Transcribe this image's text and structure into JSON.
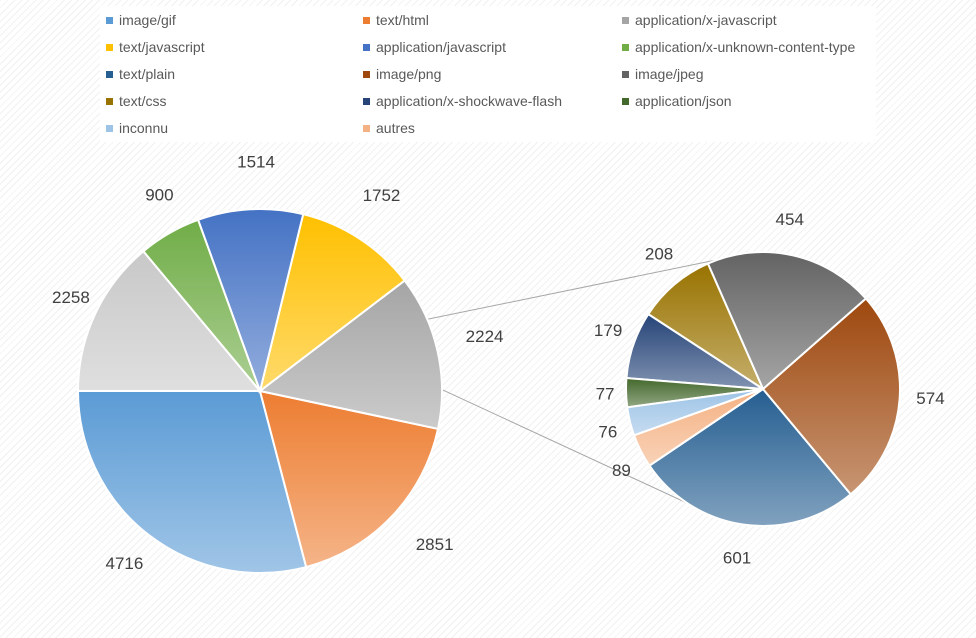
{
  "chart_data": {
    "type": "pie",
    "subtype": "pie-of-pie",
    "legend_position": "top",
    "categories": [
      "image/gif",
      "text/html",
      "application/x-javascript",
      "text/javascript",
      "application/javascript",
      "application/x-unknown-content-type",
      "text/plain",
      "image/png",
      "image/jpeg",
      "text/css",
      "application/x-shockwave-flash",
      "application/json",
      "inconnu",
      "autres"
    ],
    "colors": [
      "#5b9bd5",
      "#ed7d31",
      "#a5a5a5",
      "#ffc000",
      "#4472c4",
      "#70ad47",
      "#255e91",
      "#9e480e",
      "#636363",
      "#997300",
      "#264478",
      "#43682b",
      "#9dc3e6",
      "#f4b183"
    ],
    "main_pie": {
      "slices": [
        {
          "label": "image/gif",
          "value": 4716,
          "color": "#5b9bd5"
        },
        {
          "label": "text/html",
          "value": 2851,
          "color": "#ed7d31"
        },
        {
          "label": "application/x-javascript",
          "value": 2224,
          "color": "#a5a5a5"
        },
        {
          "label": "text/javascript",
          "value": 1752,
          "color": "#ffc000"
        },
        {
          "label": "application/javascript",
          "value": 1514,
          "color": "#4472c4"
        },
        {
          "label": "application/x-unknown-content-type",
          "value": 900,
          "color": "#70ad47"
        },
        {
          "label": "",
          "value": 2258,
          "color": "#c8c8c8"
        }
      ]
    },
    "secondary_pie": {
      "slices": [
        {
          "label": "text/plain",
          "value": 601,
          "color": "#255e91"
        },
        {
          "label": "image/png",
          "value": 574,
          "color": "#9e480e"
        },
        {
          "label": "image/jpeg",
          "value": 454,
          "color": "#636363"
        },
        {
          "label": "text/css",
          "value": 208,
          "color": "#997300"
        },
        {
          "label": "application/x-shockwave-flash",
          "value": 179,
          "color": "#264478"
        },
        {
          "label": "application/json",
          "value": 77,
          "color": "#43682b"
        },
        {
          "label": "inconnu",
          "value": 76,
          "color": "#9dc3e6"
        },
        {
          "label": "autres",
          "value": 89,
          "color": "#f4b183"
        }
      ]
    }
  }
}
